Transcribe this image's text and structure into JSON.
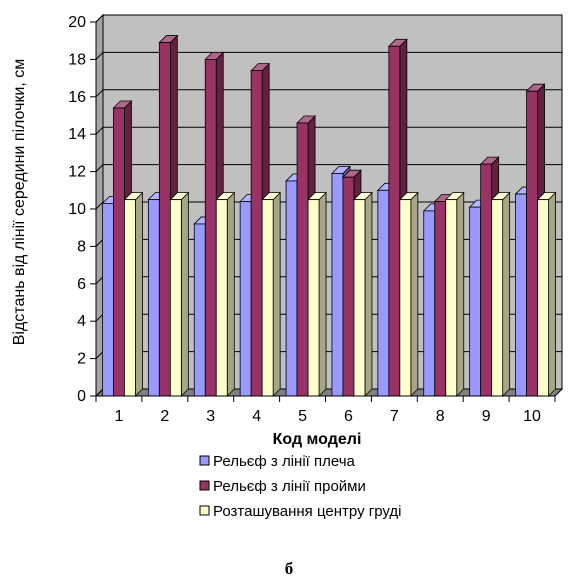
{
  "chart_data": {
    "type": "bar",
    "subtype": "3d-clustered-column",
    "categories": [
      "1",
      "2",
      "3",
      "4",
      "5",
      "6",
      "7",
      "8",
      "9",
      "10"
    ],
    "series": [
      {
        "name": "Рельєф з лінії плеча",
        "color": "#9999ff",
        "values": [
          10.3,
          10.5,
          9.2,
          10.4,
          11.5,
          11.9,
          11.0,
          9.9,
          10.1,
          10.8
        ]
      },
      {
        "name": "Рельєф з лінії пройми",
        "color": "#993366",
        "values": [
          15.4,
          18.9,
          18.0,
          17.4,
          14.6,
          11.7,
          18.7,
          10.4,
          12.4,
          16.3
        ]
      },
      {
        "name": "Розташування центру груді",
        "color": "#ffffcc",
        "values": [
          10.5,
          10.5,
          10.5,
          10.5,
          10.5,
          10.5,
          10.5,
          10.5,
          10.5,
          10.5
        ]
      }
    ],
    "xlabel": "Код моделі",
    "ylabel": "Відстань від лінії середини пілочки, см",
    "ylim": [
      0,
      20
    ],
    "yticks": [
      "0",
      "2",
      "4",
      "6",
      "8",
      "10",
      "12",
      "14",
      "16",
      "18",
      "20"
    ],
    "grid": true,
    "wall_color": "#c0c0c0",
    "legend_position": "bottom"
  },
  "caption": "б"
}
